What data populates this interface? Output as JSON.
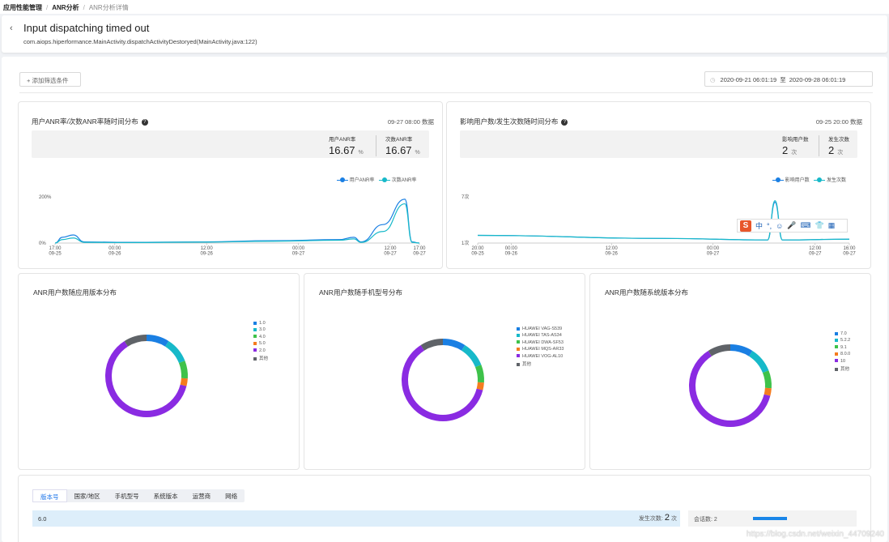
{
  "breadcrumb": {
    "items": [
      "应用性能管理",
      "ANR分析",
      "ANR分析详情"
    ],
    "separator": "/"
  },
  "header": {
    "title": "Input dispatching timed out",
    "subtitle": "com.aiops.hiperformance.MainActivity.dispatchActivityDestoryed(MainActivity.java:122)"
  },
  "toolbar": {
    "add_filter": "+ 添加筛选条件",
    "date_from": "2020-09-21 06:01:19",
    "date_sep": "至",
    "date_to": "2020-09-28 06:01:19"
  },
  "anr_rate_card": {
    "title": "用户ANR率/次数ANR率随时间分布",
    "timestamp": "09-27 08:00 数据",
    "stats": [
      {
        "label": "用户ANR率",
        "value": "16.67",
        "unit": "%"
      },
      {
        "label": "次数ANR率",
        "value": "16.67",
        "unit": "%"
      }
    ],
    "legend": [
      "用户ANR率",
      "次数ANR率"
    ]
  },
  "users_count_card": {
    "title": "影响用户数/发生次数随时间分布",
    "timestamp": "09-25 20:00 数据",
    "stats": [
      {
        "label": "影响用户数",
        "value": "2",
        "unit": "次"
      },
      {
        "label": "发生次数",
        "value": "2",
        "unit": "次"
      }
    ],
    "legend": [
      "影响用户数",
      "发生次数"
    ]
  },
  "colors": {
    "blue": "#1a7fe3",
    "cyan": "#17b9c9",
    "green": "#3ec24a",
    "orange": "#f57c1f",
    "purple": "#8a2be2",
    "gray": "#5f6368"
  },
  "ime": {
    "icons": [
      "sogou-logo",
      "中",
      "°,",
      "☺",
      "🎤",
      "⌨",
      "👕",
      "▦"
    ]
  },
  "chart_data": [
    {
      "type": "line",
      "title": "用户ANR率/次数ANR率随时间分布",
      "x_ticks": [
        [
          "17:00",
          "09-25"
        ],
        [
          "00:00",
          "09-26"
        ],
        [
          "12:00",
          "09-26"
        ],
        [
          "00:00",
          "09-27"
        ],
        [
          "12:00",
          "09-27"
        ],
        [
          "17:00",
          "09-27"
        ]
      ],
      "y_ticks": [
        "0%",
        "200%"
      ],
      "ylim": [
        0,
        200
      ],
      "series": [
        {
          "name": "用户ANR率",
          "color": "#1a7fe3",
          "points": [
            [
              0,
              0
            ],
            [
              0.02,
              25
            ],
            [
              0.05,
              35
            ],
            [
              0.08,
              5
            ],
            [
              0.2,
              3
            ],
            [
              0.4,
              5
            ],
            [
              0.6,
              10
            ],
            [
              0.78,
              15
            ],
            [
              0.82,
              25
            ],
            [
              0.84,
              5
            ],
            [
              0.9,
              80
            ],
            [
              0.96,
              190
            ],
            [
              0.98,
              5
            ],
            [
              1,
              0
            ]
          ]
        },
        {
          "name": "次数ANR率",
          "color": "#17b9c9",
          "points": [
            [
              0,
              0
            ],
            [
              0.02,
              15
            ],
            [
              0.05,
              22
            ],
            [
              0.08,
              3
            ],
            [
              0.2,
              2
            ],
            [
              0.4,
              4
            ],
            [
              0.6,
              8
            ],
            [
              0.78,
              12
            ],
            [
              0.82,
              18
            ],
            [
              0.84,
              3
            ],
            [
              0.9,
              50
            ],
            [
              0.96,
              170
            ],
            [
              0.98,
              3
            ],
            [
              1,
              0
            ]
          ]
        }
      ]
    },
    {
      "type": "line",
      "title": "影响用户数/发生次数随时间分布",
      "x_ticks": [
        [
          "20:00",
          "09-25"
        ],
        [
          "00:00",
          "09-26"
        ],
        [
          "12:00",
          "09-26"
        ],
        [
          "00:00",
          "09-27"
        ],
        [
          "12:00",
          "09-27"
        ],
        [
          "16:00",
          "09-27"
        ]
      ],
      "y_ticks": [
        "1次",
        "7次"
      ],
      "ylim": [
        1,
        7
      ],
      "series": [
        {
          "name": "影响用户数",
          "color": "#1a7fe3",
          "points": [
            [
              0,
              2
            ],
            [
              0.5,
              1.6
            ],
            [
              0.78,
              1.4
            ],
            [
              0.8,
              6.3
            ],
            [
              0.82,
              1.4
            ],
            [
              1,
              1.5
            ]
          ]
        },
        {
          "name": "发生次数",
          "color": "#17b9c9",
          "points": [
            [
              0,
              2
            ],
            [
              0.5,
              1.6
            ],
            [
              0.78,
              1.4
            ],
            [
              0.8,
              6.5
            ],
            [
              0.82,
              1.4
            ],
            [
              1,
              1.5
            ]
          ]
        }
      ]
    },
    {
      "type": "pie",
      "title": "ANR用户数随应用版本分布",
      "labels": [
        "1.0",
        "3.0",
        "4.0",
        "5.0",
        "2.0",
        "其他"
      ],
      "values": [
        9,
        10,
        7,
        3,
        62,
        9
      ],
      "colors": [
        "#1a7fe3",
        "#17b9c9",
        "#3ec24a",
        "#f57c1f",
        "#8a2be2",
        "#5f6368"
      ]
    },
    {
      "type": "pie",
      "title": "ANR用户数随手机型号分布",
      "labels": [
        "HUAWEI VAG-S539",
        "HUAWEI TAS-AS34",
        "HUAWEI DWA-SF53",
        "HUAWEI MQS-AR33",
        "HUAWEI VOG-AL10",
        "其他"
      ],
      "values": [
        9,
        10,
        7,
        3,
        62,
        9
      ],
      "colors": [
        "#1a7fe3",
        "#17b9c9",
        "#3ec24a",
        "#f57c1f",
        "#8a2be2",
        "#5f6368"
      ]
    },
    {
      "type": "pie",
      "title": "ANR用户数随系统版本分布",
      "labels": [
        "7.0",
        "5.2.2",
        "9.1",
        "8.0.0",
        "10",
        "其他"
      ],
      "values": [
        9,
        10,
        7,
        3,
        62,
        9
      ],
      "colors": [
        "#1a7fe3",
        "#17b9c9",
        "#3ec24a",
        "#f57c1f",
        "#8a2be2",
        "#5f6368"
      ]
    }
  ],
  "bottom": {
    "tabs": [
      "版本号",
      "国家/地区",
      "手机型号",
      "系统版本",
      "运营商",
      "网络"
    ],
    "row": {
      "version": "6.0",
      "count_label": "发生次数:",
      "count_value": "2",
      "count_unit": "次"
    },
    "session": {
      "label": "会话数:",
      "value": "2"
    }
  },
  "watermark": "https://blog.csdn.net/weixin_44709240"
}
